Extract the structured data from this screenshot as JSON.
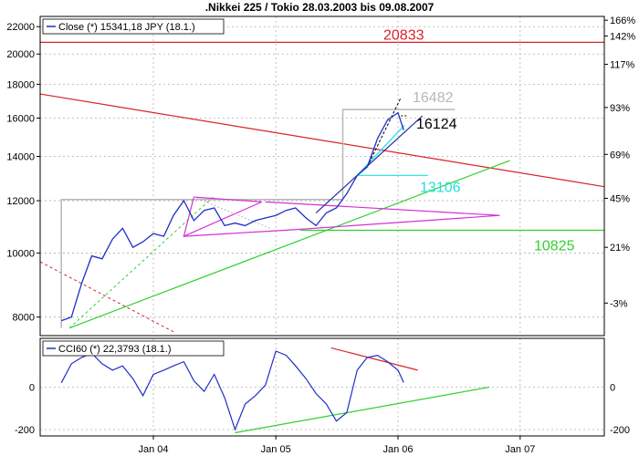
{
  "window": {
    "title": ".Nikkei 225 / Tokio 28.03.2003 bis 09.08.2007"
  },
  "colors": {
    "background": "#ffffff",
    "frame": "#000000",
    "grid": "#b0b0b0",
    "price_series": "#1f2fc6",
    "resistance_red": "#d8232a",
    "support_green": "#2fd12f",
    "triangle_magenta": "#d62fd6",
    "level_gray": "#b8b8b8",
    "cyan": "#22dede",
    "navy": "#1f2fa8"
  },
  "chart_data": [
    {
      "type": "line",
      "panel": "price",
      "legend": {
        "label": "Close (*) 15341,18 JPY (18.1.)",
        "placement": "top-left"
      },
      "y_scale": "log",
      "ylim": [
        7500,
        22800
      ],
      "y_ticks_left": [
        "8000",
        "10000",
        "12000",
        "14000",
        "16000",
        "18000",
        "20000",
        "22000"
      ],
      "y_ticks_right": [
        "-3%",
        "21%",
        "45%",
        "69%",
        "93%",
        "117%",
        "142%",
        "166%"
      ],
      "x_ticks": [
        "Jan 04",
        "Jan 05",
        "Jan 06",
        "Jan 07"
      ],
      "grid": true,
      "series": [
        {
          "name": "Close",
          "x": [
            "2003-04-01",
            "2003-05-01",
            "2003-06-01",
            "2003-07-01",
            "2003-08-01",
            "2003-09-01",
            "2003-10-01",
            "2003-11-01",
            "2003-12-01",
            "2004-01-01",
            "2004-02-01",
            "2004-03-01",
            "2004-04-01",
            "2004-05-01",
            "2004-06-01",
            "2004-07-01",
            "2004-08-01",
            "2004-09-01",
            "2004-10-01",
            "2004-11-01",
            "2004-12-01",
            "2005-01-01",
            "2005-02-01",
            "2005-03-01",
            "2005-04-01",
            "2005-05-01",
            "2005-06-01",
            "2005-07-01",
            "2005-08-01",
            "2005-09-01",
            "2005-10-01",
            "2005-11-01",
            "2005-12-01",
            "2006-01-01",
            "2006-01-18"
          ],
          "y": [
            7900,
            8000,
            9000,
            9900,
            9800,
            10500,
            10900,
            10200,
            10400,
            10700,
            10600,
            11400,
            12000,
            11200,
            11600,
            11700,
            11000,
            11100,
            11000,
            11200,
            11300,
            11400,
            11600,
            11700,
            11300,
            11000,
            11500,
            11700,
            12300,
            13100,
            13500,
            14900,
            15900,
            16300,
            15341
          ]
        }
      ],
      "levels": [
        {
          "label": "20833",
          "value": 20833
        },
        {
          "label": "16482",
          "value": 16482
        },
        {
          "label": "16124",
          "value": 16124
        },
        {
          "label": "13106",
          "value": 13106
        },
        {
          "label": "10825",
          "value": 10825
        }
      ]
    },
    {
      "type": "line",
      "panel": "indicator",
      "legend": {
        "label": "CCI60 (*) 22,3793 (18.1.)",
        "placement": "top-left"
      },
      "ylim": [
        -230,
        230
      ],
      "y_ticks": [
        "-200",
        "0"
      ],
      "series": [
        {
          "name": "CCI60",
          "x": [
            "2003-04-01",
            "2003-05-01",
            "2003-06-01",
            "2003-07-01",
            "2003-08-01",
            "2003-09-01",
            "2003-10-01",
            "2003-11-01",
            "2003-12-01",
            "2004-01-01",
            "2004-02-01",
            "2004-03-01",
            "2004-04-01",
            "2004-05-01",
            "2004-06-01",
            "2004-07-01",
            "2004-08-01",
            "2004-09-01",
            "2004-10-01",
            "2004-11-01",
            "2004-12-01",
            "2005-01-01",
            "2005-02-01",
            "2005-03-01",
            "2005-04-01",
            "2005-05-01",
            "2005-06-01",
            "2005-07-01",
            "2005-08-01",
            "2005-09-01",
            "2005-10-01",
            "2005-11-01",
            "2005-12-01",
            "2006-01-01",
            "2006-01-18"
          ],
          "y": [
            20,
            110,
            140,
            160,
            110,
            80,
            100,
            40,
            -40,
            60,
            80,
            100,
            120,
            30,
            -20,
            60,
            -50,
            -200,
            -80,
            -40,
            10,
            170,
            150,
            100,
            40,
            -30,
            -80,
            -160,
            -120,
            80,
            140,
            150,
            120,
            80,
            22
          ]
        }
      ]
    }
  ]
}
